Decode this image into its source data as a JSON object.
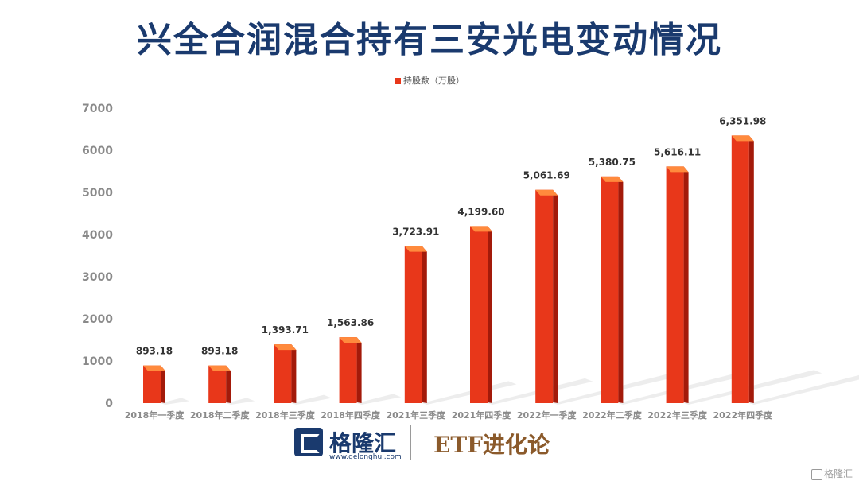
{
  "title": "兴全合润混合持有三安光电变动情况",
  "footer": {
    "logo_name": "格隆汇",
    "logo_url": "www.gelonghui.com",
    "etf_label": "ETF进化论",
    "watermark": "格隆汇"
  },
  "colors": {
    "bar_front": "#e8371a",
    "bar_side": "#a31a0a",
    "bar_top": "#ff8a3d",
    "title": "#1a3a6e",
    "etf": "#8b5a2b"
  },
  "chart_data": {
    "type": "bar",
    "legend": [
      "持股数（万股）"
    ],
    "categories": [
      "2018年一季度",
      "2018年二季度",
      "2018年三季度",
      "2018年四季度",
      "2021年三季度",
      "2021年四季度",
      "2022年一季度",
      "2022年二季度",
      "2022年三季度",
      "2022年四季度"
    ],
    "series": [
      {
        "name": "持股数（万股）",
        "values": [
          893.18,
          893.18,
          1393.71,
          1563.86,
          3723.91,
          4199.6,
          5061.69,
          5380.75,
          5616.11,
          6351.98
        ]
      }
    ],
    "value_labels": [
      "893.18",
      "893.18",
      "1,393.71",
      "1,563.86",
      "3,723.91",
      "4,199.60",
      "5,061.69",
      "5,380.75",
      "5,616.11",
      "6,351.98"
    ],
    "y_ticks": [
      "0",
      "1000",
      "2000",
      "3000",
      "4000",
      "5000",
      "6000",
      "7000"
    ],
    "ylim": [
      0,
      7000
    ],
    "grid": false,
    "legend_position": "top-center"
  }
}
